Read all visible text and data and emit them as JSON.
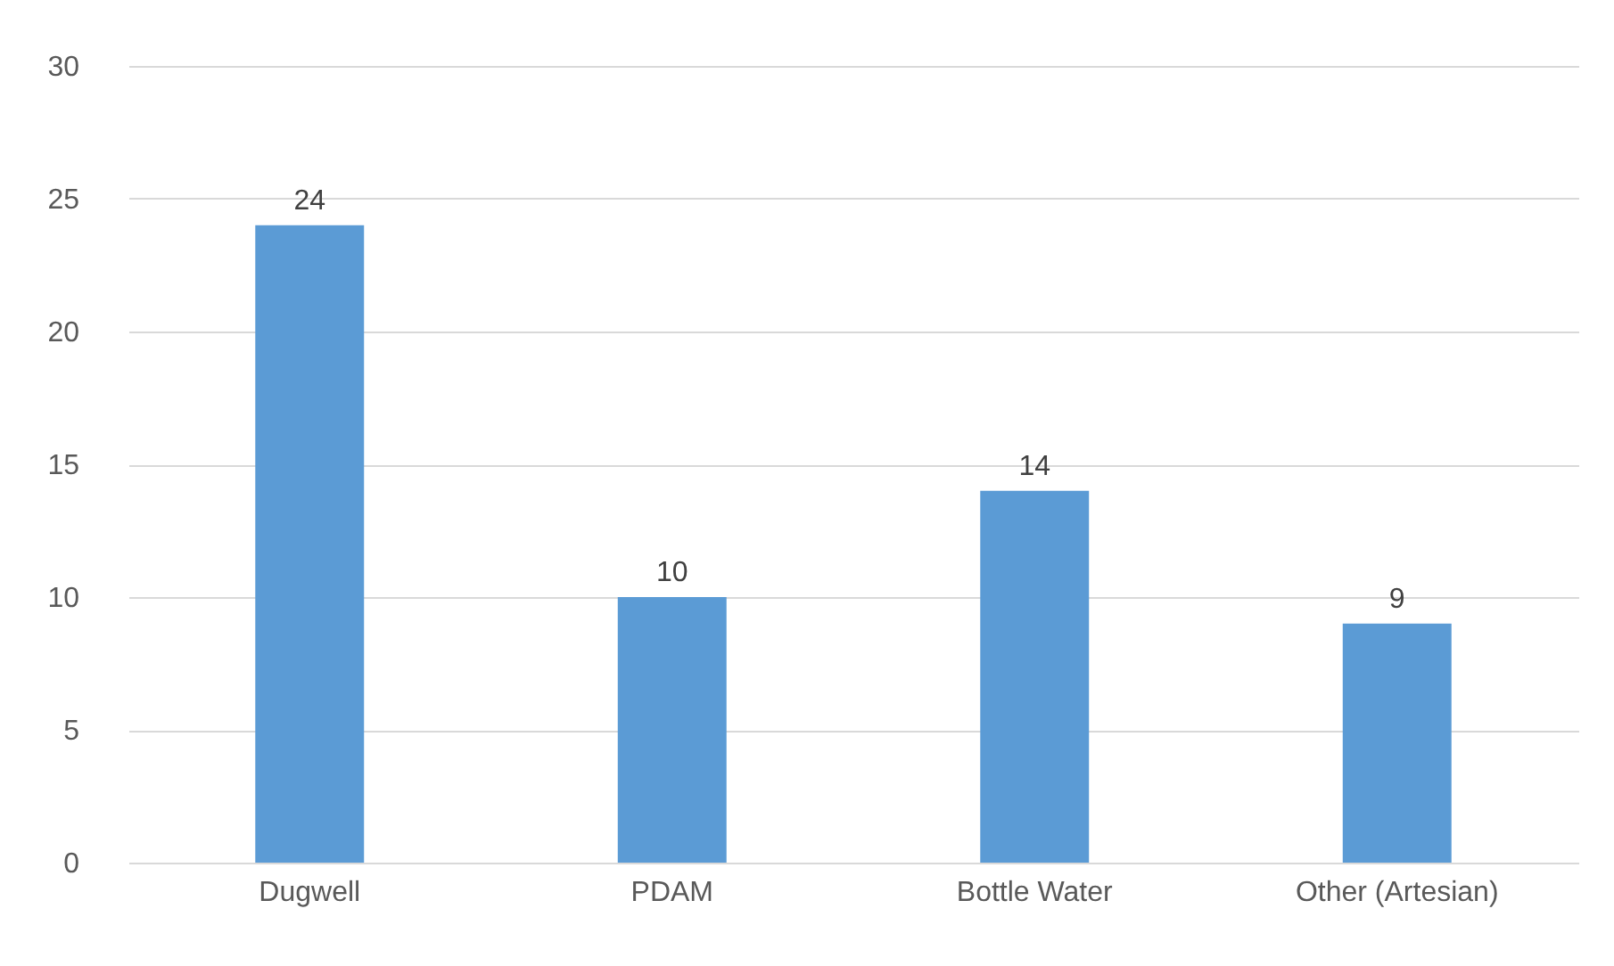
{
  "chart_data": {
    "type": "bar",
    "categories": [
      "Dugwell",
      "PDAM",
      "Bottle Water",
      "Other (Artesian)"
    ],
    "values": [
      24,
      10,
      14,
      9
    ],
    "color": "#5b9bd5",
    "ylim": [
      0,
      30
    ],
    "yticks": [
      0,
      5,
      10,
      15,
      20,
      25,
      30
    ],
    "grid": "y",
    "data_labels": true
  }
}
